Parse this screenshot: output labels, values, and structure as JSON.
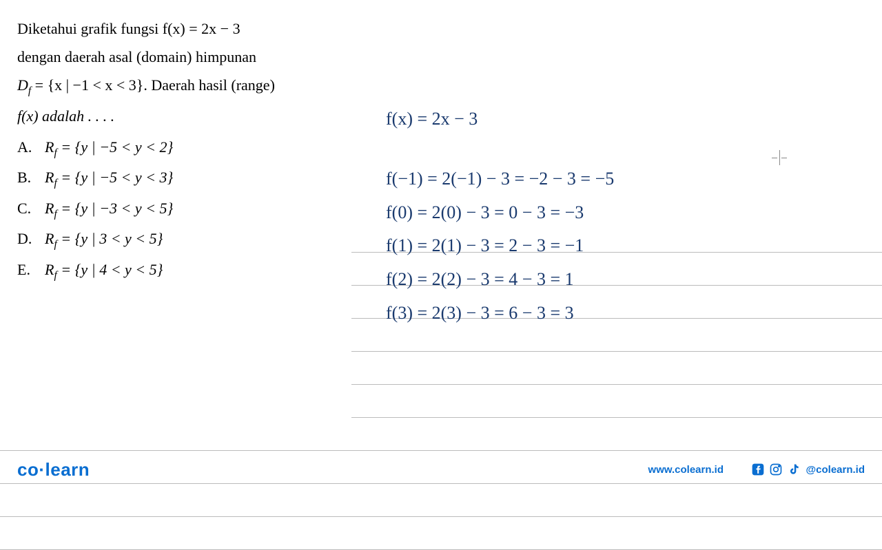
{
  "problem": {
    "line1": "Diketahui grafik fungsi f(x) = 2x − 3",
    "line2": "dengan daerah asal (domain) himpunan",
    "line3_prefix": "D",
    "line3_sub": "f",
    "line3_rest": " = {x | −1 < x < 3}. Daerah hasil (range)",
    "line4": "f(x) adalah . . . ."
  },
  "options": [
    {
      "letter": "A.",
      "prefix": "R",
      "sub": "f",
      "rest": " = {y | −5 < y < 2}"
    },
    {
      "letter": "B.",
      "prefix": "R",
      "sub": "f",
      "rest": " = {y | −5 < y < 3}"
    },
    {
      "letter": "C.",
      "prefix": "R",
      "sub": "f",
      "rest": " = {y | −3 < y < 5}"
    },
    {
      "letter": "D.",
      "prefix": "R",
      "sub": "f",
      "rest": " = {y | 3 < y < 5}"
    },
    {
      "letter": "E.",
      "prefix": "R",
      "sub": "f",
      "rest": " = {y | 4 < y < 5}"
    }
  ],
  "handwritten": {
    "header": "f(x) = 2x − 3",
    "rows": [
      "f(−1) = 2(−1) − 3 = −2 − 3 = −5",
      "f(0)  = 2(0) − 3  = 0 − 3 = −3",
      "f(1)  = 2(1) − 3  = 2 − 3 = −1",
      "f(2)  = 2(2) − 3 = 4 − 3 = 1",
      "f(3)  = 2(3) − 3 = 6 − 3 = 3"
    ],
    "color": "#1a3a6e",
    "fontsize": 26
  },
  "ruled": {
    "positions": [
      186,
      234,
      282,
      330,
      378,
      426,
      474,
      522,
      570,
      618
    ],
    "left_cutoff": 510,
    "full_after_index": 6,
    "color": "#bbbbbb"
  },
  "footer": {
    "logo_co": "co",
    "logo_dot": "·",
    "logo_learn": "learn",
    "website": "www.colearn.id",
    "handle": "@colearn.id",
    "color": "#0a6ed1"
  }
}
